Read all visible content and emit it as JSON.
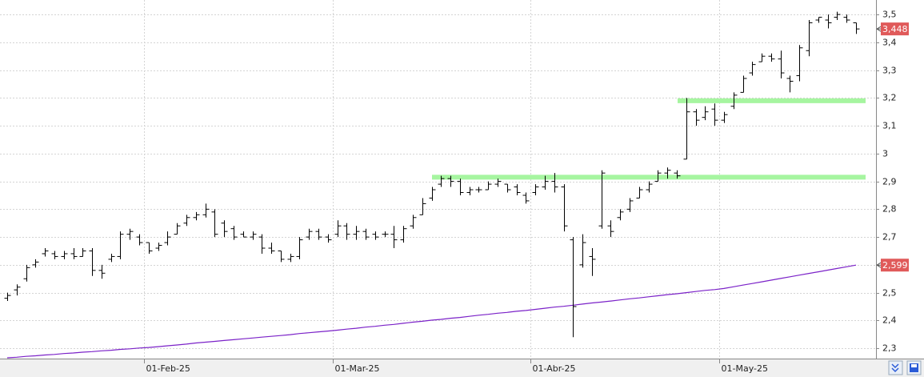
{
  "chart_data": {
    "type": "ohlc",
    "categories": [
      null,
      null,
      null,
      null,
      null,
      null,
      null,
      null,
      null,
      null,
      null,
      null,
      null,
      null,
      null,
      "01-Feb-25",
      null,
      null,
      null,
      null,
      null,
      null,
      null,
      null,
      null,
      null,
      null,
      null,
      null,
      null,
      null,
      null,
      null,
      null,
      null,
      "01-Mar-25",
      null,
      null,
      null,
      null,
      null,
      null,
      null,
      null,
      null,
      null,
      null,
      null,
      null,
      null,
      null,
      null,
      null,
      null,
      null,
      null,
      "01-Abr-25",
      null,
      null,
      null,
      null,
      null,
      null,
      null,
      null,
      null,
      null,
      null,
      null,
      null,
      null,
      null,
      null,
      null,
      null,
      null,
      "01-May-25",
      null,
      null,
      null,
      null,
      null,
      null,
      null,
      null,
      null,
      null,
      null,
      null,
      null,
      null
    ],
    "open": [
      2.48,
      2.51,
      2.55,
      2.6,
      2.64,
      2.64,
      2.63,
      2.64,
      2.63,
      2.65,
      2.58,
      2.62,
      2.63,
      2.71,
      2.7,
      2.68,
      2.66,
      2.68,
      2.71,
      2.75,
      2.77,
      2.78,
      2.79,
      2.75,
      2.73,
      2.71,
      2.7,
      2.7,
      2.66,
      2.65,
      2.62,
      2.63,
      2.7,
      2.72,
      2.7,
      2.71,
      2.74,
      2.71,
      2.72,
      2.71,
      2.71,
      2.71,
      2.69,
      2.74,
      2.78,
      2.84,
      2.89,
      2.91,
      2.9,
      2.86,
      2.87,
      2.87,
      2.89,
      2.89,
      2.88,
      2.85,
      2.86,
      2.88,
      2.9,
      2.88,
      2.69,
      2.6,
      2.63,
      2.74,
      2.74,
      2.77,
      2.8,
      2.84,
      2.87,
      2.9,
      2.93,
      2.93,
      2.98,
      3.15,
      3.13,
      3.16,
      3.12,
      3.17,
      3.22,
      3.29,
      3.33,
      3.35,
      3.34,
      3.27,
      3.28,
      3.37,
      3.48,
      3.48,
      3.49,
      3.49,
      3.47
    ],
    "high": [
      2.5,
      2.53,
      2.6,
      2.62,
      2.66,
      2.65,
      2.65,
      2.66,
      2.66,
      2.66,
      2.6,
      2.64,
      2.72,
      2.73,
      2.71,
      2.68,
      2.68,
      2.72,
      2.75,
      2.78,
      2.79,
      2.82,
      2.8,
      2.76,
      2.74,
      2.72,
      2.72,
      2.71,
      2.68,
      2.65,
      2.64,
      2.7,
      2.73,
      2.73,
      2.71,
      2.76,
      2.75,
      2.74,
      2.73,
      2.72,
      2.72,
      2.74,
      2.74,
      2.78,
      2.84,
      2.88,
      2.92,
      2.92,
      2.91,
      2.88,
      2.88,
      2.9,
      2.91,
      2.89,
      2.89,
      2.86,
      2.89,
      2.92,
      2.93,
      2.89,
      2.7,
      2.71,
      2.66,
      2.94,
      2.76,
      2.8,
      2.84,
      2.88,
      2.9,
      2.94,
      2.95,
      2.94,
      3.2,
      3.16,
      3.17,
      3.18,
      3.15,
      3.22,
      3.28,
      3.33,
      3.36,
      3.36,
      3.37,
      3.28,
      3.39,
      3.48,
      3.49,
      3.5,
      3.51,
      3.5,
      3.47
    ],
    "low": [
      2.47,
      2.49,
      2.54,
      2.59,
      2.63,
      2.62,
      2.62,
      2.62,
      2.63,
      2.56,
      2.55,
      2.61,
      2.62,
      2.69,
      2.67,
      2.64,
      2.65,
      2.67,
      2.71,
      2.74,
      2.76,
      2.77,
      2.7,
      2.7,
      2.69,
      2.7,
      2.69,
      2.64,
      2.64,
      2.61,
      2.61,
      2.62,
      2.69,
      2.69,
      2.68,
      2.7,
      2.69,
      2.69,
      2.69,
      2.69,
      2.7,
      2.66,
      2.68,
      2.73,
      2.78,
      2.83,
      2.88,
      2.88,
      2.85,
      2.85,
      2.86,
      2.87,
      2.88,
      2.86,
      2.85,
      2.82,
      2.85,
      2.87,
      2.86,
      2.72,
      2.34,
      2.59,
      2.56,
      2.73,
      2.7,
      2.76,
      2.79,
      2.84,
      2.86,
      2.9,
      2.91,
      2.91,
      2.98,
      3.1,
      3.12,
      3.1,
      3.11,
      3.16,
      3.22,
      3.28,
      3.33,
      3.33,
      3.27,
      3.22,
      3.26,
      3.35,
      3.47,
      3.45,
      3.48,
      3.47,
      3.43
    ],
    "close": [
      2.49,
      2.52,
      2.59,
      2.61,
      2.65,
      2.63,
      2.64,
      2.63,
      2.65,
      2.58,
      2.57,
      2.63,
      2.71,
      2.72,
      2.68,
      2.65,
      2.67,
      2.7,
      2.74,
      2.77,
      2.78,
      2.8,
      2.71,
      2.72,
      2.7,
      2.7,
      2.71,
      2.66,
      2.65,
      2.62,
      2.63,
      2.69,
      2.72,
      2.7,
      2.69,
      2.74,
      2.71,
      2.72,
      2.7,
      2.7,
      2.71,
      2.69,
      2.73,
      2.77,
      2.82,
      2.87,
      2.91,
      2.9,
      2.86,
      2.87,
      2.87,
      2.89,
      2.9,
      2.87,
      2.86,
      2.83,
      2.88,
      2.9,
      2.88,
      2.74,
      2.45,
      2.68,
      2.62,
      2.93,
      2.72,
      2.79,
      2.83,
      2.87,
      2.89,
      2.93,
      2.94,
      2.92,
      3.15,
      3.12,
      3.15,
      3.12,
      3.14,
      3.21,
      3.27,
      3.32,
      3.35,
      3.34,
      3.29,
      3.26,
      3.38,
      3.47,
      3.49,
      3.47,
      3.5,
      3.48,
      3.448
    ],
    "color": "#000000",
    "ma": {
      "color": "#7b22c8",
      "values": [
        2.266,
        2.268,
        2.271,
        2.273,
        2.276,
        2.278,
        2.281,
        2.283,
        2.286,
        2.288,
        2.291,
        2.293,
        2.296,
        2.298,
        2.301,
        2.303,
        2.306,
        2.309,
        2.312,
        2.315,
        2.319,
        2.322,
        2.325,
        2.328,
        2.331,
        2.334,
        2.337,
        2.34,
        2.343,
        2.346,
        2.349,
        2.353,
        2.356,
        2.359,
        2.362,
        2.365,
        2.369,
        2.372,
        2.376,
        2.379,
        2.383,
        2.386,
        2.39,
        2.394,
        2.397,
        2.401,
        2.404,
        2.408,
        2.411,
        2.415,
        2.419,
        2.422,
        2.426,
        2.429,
        2.433,
        2.436,
        2.44,
        2.444,
        2.448,
        2.451,
        2.455,
        2.459,
        2.463,
        2.466,
        2.47,
        2.474,
        2.478,
        2.481,
        2.485,
        2.489,
        2.493,
        2.496,
        2.5,
        2.504,
        2.508,
        2.511,
        2.515,
        2.521,
        2.527,
        2.533,
        2.539,
        2.545,
        2.551,
        2.557,
        2.563,
        2.569,
        2.575,
        2.581,
        2.587,
        2.593,
        2.599
      ]
    },
    "hlines": [
      {
        "value": 3.19,
        "color": "#a6f5a0"
      },
      {
        "value": 2.915,
        "color": "#a6f5a0"
      }
    ],
    "price_tags": [
      {
        "value": 3.448,
        "label": "3,448",
        "color": "#e05a5a"
      },
      {
        "value": 2.599,
        "label": "2,599",
        "color": "#e05a5a"
      }
    ],
    "ylim": [
      2.263,
      3.552
    ],
    "yticks": [
      {
        "value": 2.3,
        "label": "2,3"
      },
      {
        "value": 2.4,
        "label": "2,4"
      },
      {
        "value": 2.5,
        "label": "2,5"
      },
      {
        "value": 2.6,
        "label": "2,6"
      },
      {
        "value": 2.7,
        "label": "2,7"
      },
      {
        "value": 2.8,
        "label": "2,8"
      },
      {
        "value": 2.9,
        "label": "2,9"
      },
      3,
      {
        "value": 3.1,
        "label": "3,1"
      },
      {
        "value": 3.2,
        "label": "3,2"
      },
      {
        "value": 3.3,
        "label": "3,3"
      },
      {
        "value": 3.4,
        "label": "3,4"
      },
      {
        "value": 3.5,
        "label": "3,5"
      }
    ],
    "grid": true
  }
}
